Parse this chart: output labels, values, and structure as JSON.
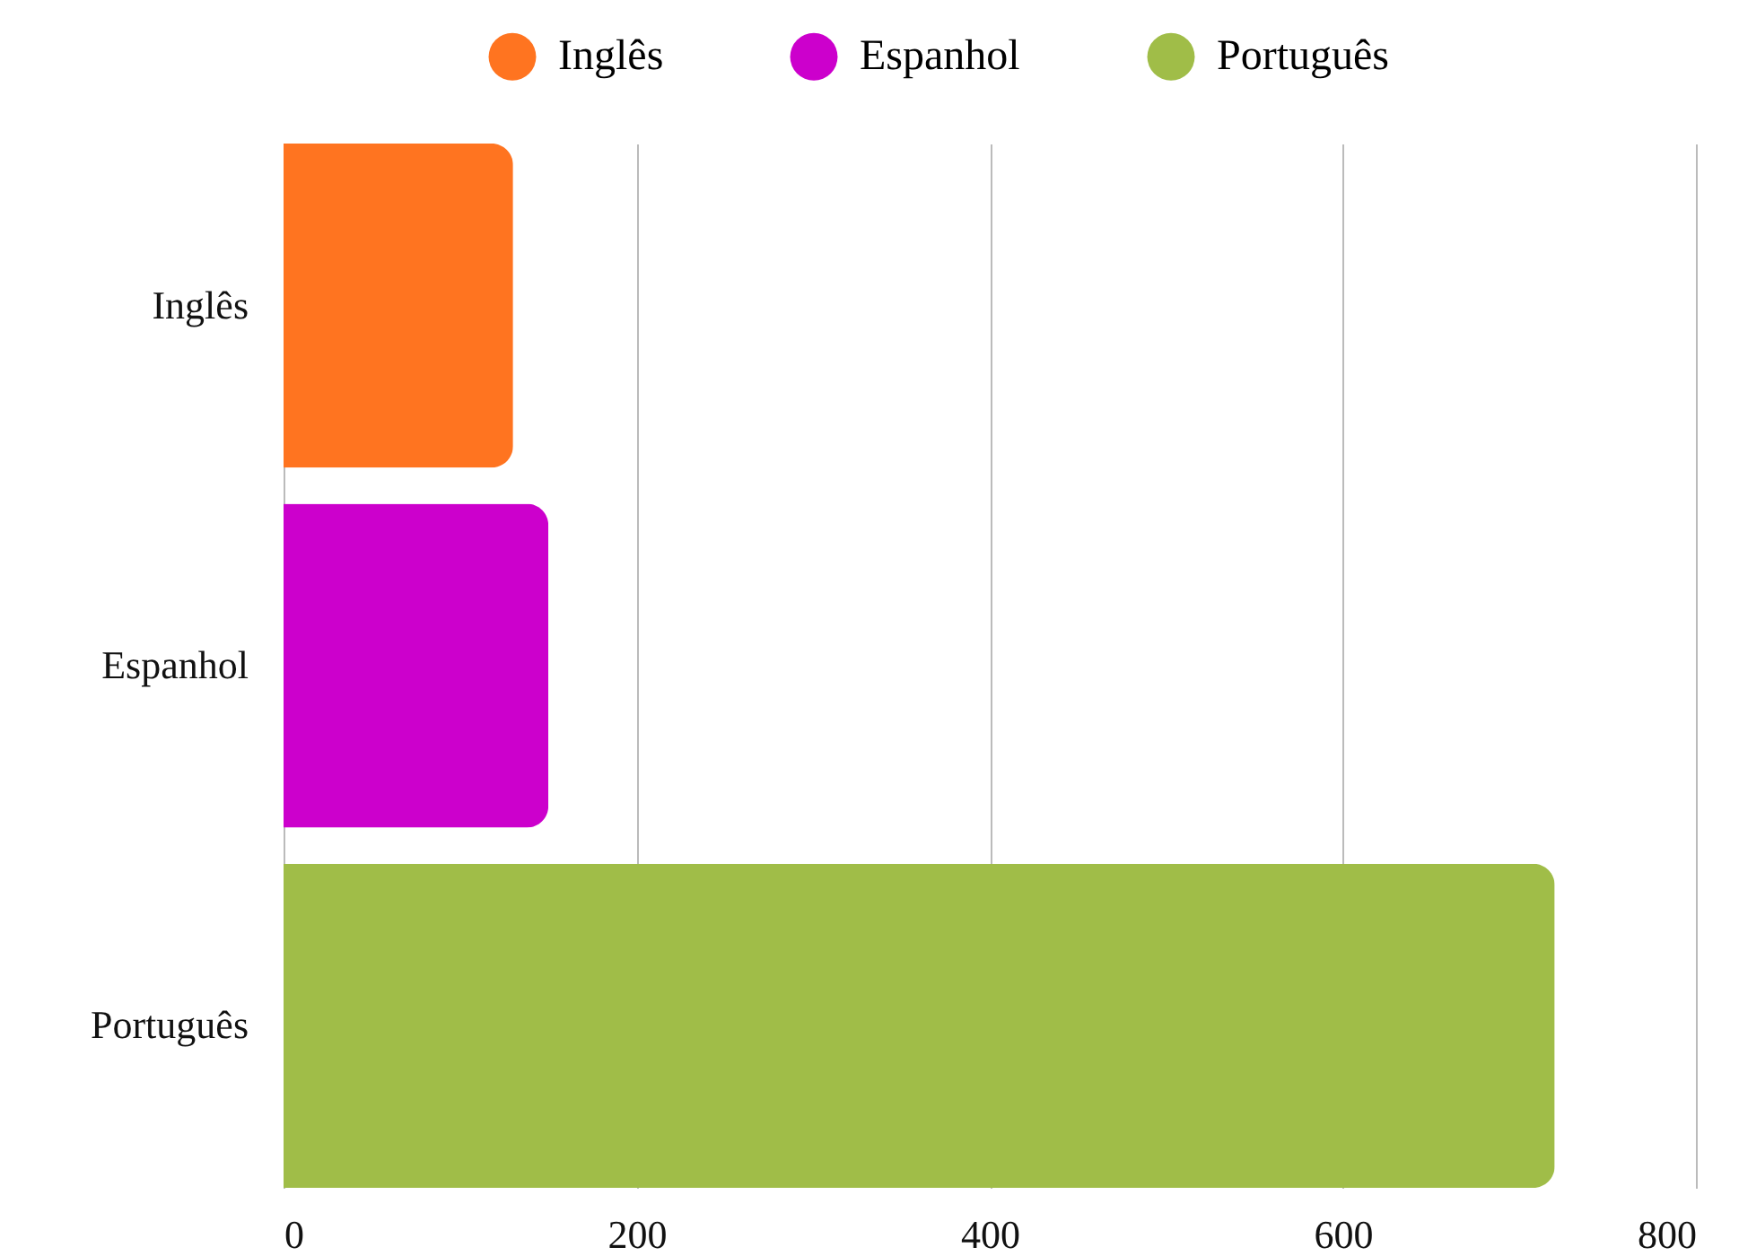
{
  "chart_data": {
    "type": "bar",
    "orientation": "horizontal",
    "stacked": true,
    "categories": [
      "Inglês",
      "Espanhol",
      "Português"
    ],
    "series": [
      {
        "name": "Inglês",
        "color": "#ff7420",
        "values": [
          130,
          null,
          null
        ]
      },
      {
        "name": "Espanhol",
        "color": "#cc00cc",
        "values": [
          null,
          150,
          null
        ]
      },
      {
        "name": "Português",
        "color": "#a0bd48",
        "values": [
          null,
          null,
          720
        ]
      }
    ],
    "xlim": [
      0,
      800
    ],
    "xticks": [
      0,
      200,
      400,
      600,
      800
    ],
    "grid": "x",
    "legend": "top"
  }
}
